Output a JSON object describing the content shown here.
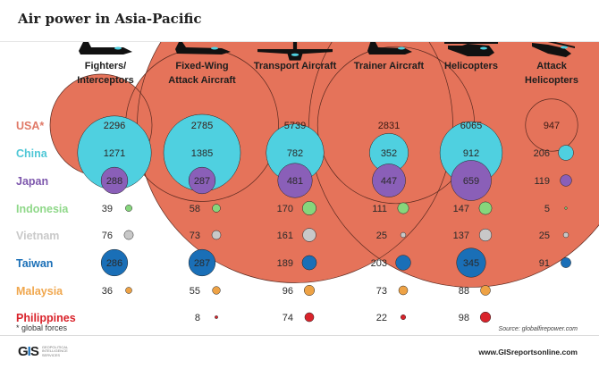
{
  "header": {
    "title": "Air power in Asia-Pacific"
  },
  "footer": {
    "note": "* global forces",
    "source": "Source: globalfirepower.com",
    "url": "www.GISreportsonline.com",
    "logo_mark": "GIS",
    "logo_text": "GEOPOLITICAL INTELLIGENCE SERVICES"
  },
  "chart_data": {
    "type": "bubble-table",
    "title": "Air power in Asia-Pacific",
    "categories": [
      {
        "label": [
          "Fighters/",
          "Interceptors"
        ],
        "icon": "fighter-jet-icon"
      },
      {
        "label": [
          "Fixed-Wing",
          "Attack Aircraft"
        ],
        "icon": "attack-jet-icon"
      },
      {
        "label": [
          "Transport Aircraft"
        ],
        "icon": "transport-plane-icon"
      },
      {
        "label": [
          "Trainer Aircraft"
        ],
        "icon": "trainer-jet-icon"
      },
      {
        "label": [
          "Helicopters"
        ],
        "icon": "helicopter-icon"
      },
      {
        "label": [
          "Attack",
          "Helicopters"
        ],
        "icon": "attack-helicopter-icon"
      }
    ],
    "series": [
      {
        "name": "USA*",
        "color": "#e5735a",
        "values": [
          2296,
          2785,
          5739,
          2831,
          6065,
          947
        ]
      },
      {
        "name": "China",
        "color": "#4fd0e0",
        "values": [
          1271,
          1385,
          782,
          352,
          912,
          206
        ]
      },
      {
        "name": "Japan",
        "color": "#8a5fb8",
        "values": [
          288,
          287,
          481,
          447,
          659,
          119
        ]
      },
      {
        "name": "Indonesia",
        "color": "#86d67c",
        "values": [
          39,
          58,
          170,
          111,
          147,
          5
        ]
      },
      {
        "name": "Vietnam",
        "color": "#c8c8c8",
        "values": [
          76,
          73,
          161,
          25,
          137,
          25
        ]
      },
      {
        "name": "Taiwan",
        "color": "#1a6fb7",
        "values": [
          286,
          287,
          189,
          203,
          345,
          91
        ]
      },
      {
        "name": "Malaysia",
        "color": "#eea245",
        "values": [
          36,
          55,
          96,
          73,
          88,
          null
        ]
      },
      {
        "name": "Philippines",
        "color": "#d9232b",
        "values": [
          null,
          8,
          74,
          22,
          98,
          null
        ]
      }
    ],
    "country_label_colors": {
      "USA*": "#e07a68",
      "China": "#4fc7d6",
      "Japan": "#7e58ad",
      "Indonesia": "#8fd889",
      "Vietnam": "#c9c9c9",
      "Taiwan": "#1a6fb7",
      "Malaysia": "#f0a74e",
      "Philippines": "#d9232b"
    },
    "encoding": "bubble area proportional to aircraft count"
  }
}
